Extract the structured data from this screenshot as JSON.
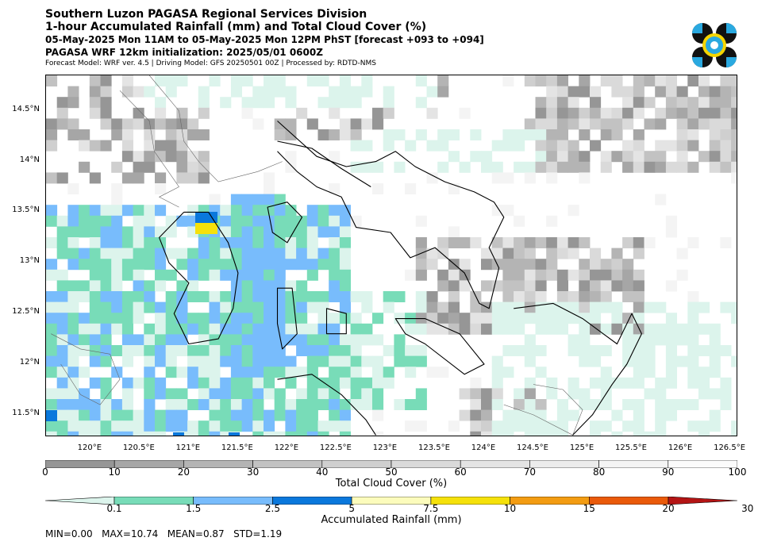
{
  "header": {
    "line1": "Southern Luzon PAGASA Regional Services Division",
    "line2": "1-hour Accumulated Rainfall (mm) and Total Cloud Cover (%)",
    "line3": "05-May-2025 Mon 11AM to 05-May-2025 Mon 12PM PhST [forecast +093 to +094]",
    "line4": "PAGASA WRF 12km initialization: 2025/05/01 0600Z",
    "line5": "Forecast Model: WRF ver. 4.5 | Driving Model: GFS 20250501 00Z | Processed by: RDTD-NMS"
  },
  "logo": {
    "icon": "pagasa-logo-icon",
    "colors": [
      "#111111",
      "#2aa9e0",
      "#f5d500"
    ]
  },
  "map": {
    "lat_labels": [
      "14.5°N",
      "14°N",
      "13.5°N",
      "13°N",
      "12.5°N",
      "12°N",
      "11.5°N"
    ],
    "lon_labels": [
      "120°E",
      "120.5°E",
      "121°E",
      "121.5°E",
      "122°E",
      "122.5°E",
      "123°E",
      "123.5°E",
      "124°E",
      "124.5°E",
      "125°E",
      "125.5°E",
      "126°E",
      "126.5°E"
    ],
    "lat_range": [
      11.28,
      14.85
    ],
    "lon_range": [
      119.55,
      126.58
    ]
  },
  "cloud_legend": {
    "title": "Total Cloud Cover (%)",
    "ticks": [
      "0",
      "10",
      "20",
      "30",
      "40",
      "50",
      "60",
      "70",
      "80",
      "90",
      "100"
    ],
    "colors": [
      "#969696",
      "#a6a6a6",
      "#b4b4b4",
      "#c2c2c2",
      "#cfcfcf",
      "#dadada",
      "#e4e4e4",
      "#ececec",
      "#f4f4f4",
      "#fbfbfb"
    ]
  },
  "rain_legend": {
    "title": "Accumulated Rainfall (mm)",
    "ticks": [
      "0.1",
      "1.5",
      "2.5",
      "5",
      "7.5",
      "10",
      "15",
      "20",
      "30"
    ],
    "colors": [
      "#dcf4ec",
      "#78dcb8",
      "#78bcfc",
      "#0a78dc",
      "#fcfcbc",
      "#f5e10a",
      "#f39c12",
      "#ea5a0a",
      "#b41414"
    ]
  },
  "stats": {
    "min": "MIN=0.00",
    "max": "MAX=10.74",
    "mean": "MEAN=0.87",
    "std": "STD=1.19"
  }
}
